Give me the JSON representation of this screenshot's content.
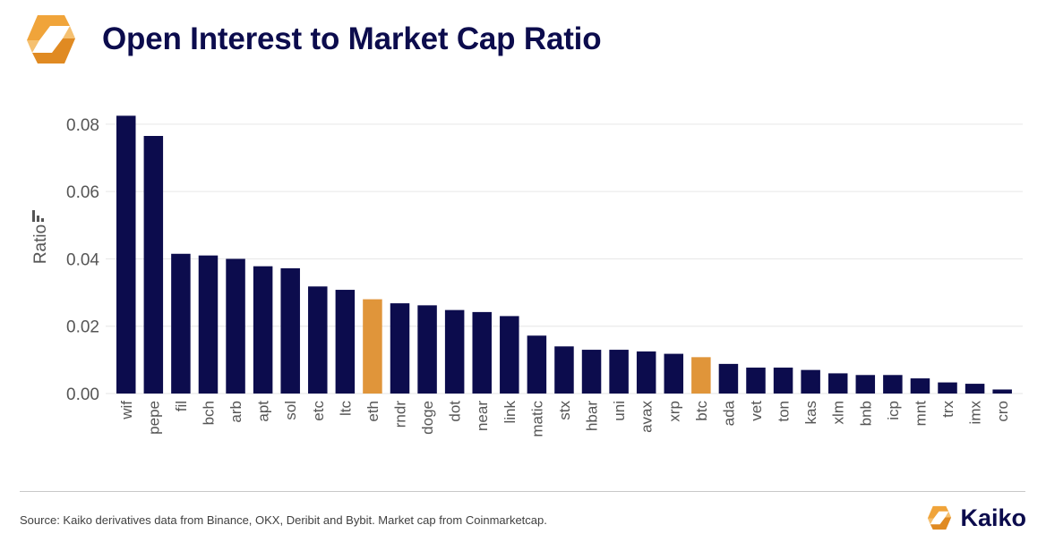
{
  "header": {
    "title": "Open Interest to Market Cap Ratio"
  },
  "footer": {
    "source": "Source: Kaiko derivatives data from Binance, OKX, Deribit and Bybit. Market cap from Coinmarketcap.",
    "brand": "Kaiko"
  },
  "colors": {
    "navy": "#0c0c4d",
    "orange": "#e0953a",
    "grid": "#e6e6e6"
  },
  "chart_data": {
    "type": "bar",
    "title": "Open Interest to Market Cap Ratio",
    "ylabel": "Ratio",
    "xlabel": "",
    "ylim": [
      0,
      0.085
    ],
    "yticks": [
      0,
      0.02,
      0.04,
      0.06,
      0.08
    ],
    "ytick_labels": [
      "0.00",
      "0.02",
      "0.04",
      "0.06",
      "0.08"
    ],
    "grid": true,
    "categories": [
      "wif",
      "pepe",
      "fil",
      "bch",
      "arb",
      "apt",
      "sol",
      "etc",
      "ltc",
      "eth",
      "rndr",
      "doge",
      "dot",
      "near",
      "link",
      "matic",
      "stx",
      "hbar",
      "uni",
      "avax",
      "xrp",
      "btc",
      "ada",
      "vet",
      "ton",
      "kas",
      "xlm",
      "bnb",
      "icp",
      "mnt",
      "trx",
      "imx",
      "cro"
    ],
    "values": [
      0.0825,
      0.0765,
      0.0415,
      0.041,
      0.04,
      0.0378,
      0.0372,
      0.0318,
      0.0308,
      0.028,
      0.0268,
      0.0262,
      0.0248,
      0.0242,
      0.023,
      0.0172,
      0.014,
      0.013,
      0.013,
      0.0125,
      0.0118,
      0.0108,
      0.0088,
      0.0077,
      0.0077,
      0.007,
      0.006,
      0.0055,
      0.0055,
      0.0045,
      0.0033,
      0.0029,
      0.0012
    ],
    "highlight": [
      "eth",
      "btc"
    ]
  }
}
